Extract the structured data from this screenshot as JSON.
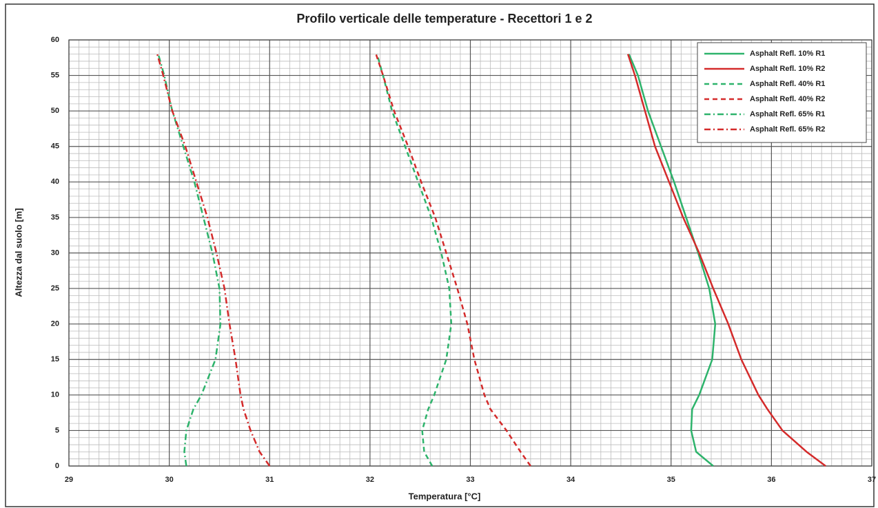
{
  "chart_data": {
    "type": "line",
    "title": "Profilo verticale delle temperature - Recettori 1 e 2",
    "x_label": "Temperatura [°C]",
    "y_label": "Altezza  dal suolo [m]",
    "y": [
      0,
      2,
      5,
      8,
      10,
      15,
      20,
      25,
      30,
      35,
      40,
      45,
      50,
      55,
      58
    ],
    "series": [
      {
        "name": "Asphalt Refl. 10% R1",
        "color": "#2db36b",
        "style": "solid",
        "values": [
          35.42,
          35.25,
          35.2,
          35.21,
          35.28,
          35.41,
          35.44,
          35.38,
          35.27,
          35.15,
          35.03,
          34.9,
          34.77,
          34.67,
          34.58
        ]
      },
      {
        "name": "Asphalt Refl. 10% R2",
        "color": "#d42a2a",
        "style": "solid",
        "values": [
          36.54,
          36.35,
          36.11,
          35.96,
          35.87,
          35.7,
          35.57,
          35.42,
          35.28,
          35.12,
          34.98,
          34.84,
          34.74,
          34.64,
          34.57
        ]
      },
      {
        "name": "Asphalt Refl. 40% R1",
        "color": "#2db36b",
        "style": "dashed",
        "values": [
          32.62,
          32.54,
          32.52,
          32.58,
          32.64,
          32.76,
          32.81,
          32.79,
          32.71,
          32.61,
          32.48,
          32.35,
          32.22,
          32.13,
          32.07
        ]
      },
      {
        "name": "Asphalt Refl. 40% R2",
        "color": "#d42a2a",
        "style": "dashed",
        "values": [
          33.6,
          33.5,
          33.36,
          33.2,
          33.14,
          33.04,
          32.97,
          32.87,
          32.76,
          32.65,
          32.51,
          32.38,
          32.24,
          32.13,
          32.06
        ]
      },
      {
        "name": "Asphalt Refl. 65% R1",
        "color": "#2db36b",
        "style": "dashdot",
        "values": [
          30.17,
          30.15,
          30.17,
          30.24,
          30.32,
          30.46,
          30.51,
          30.5,
          30.43,
          30.34,
          30.25,
          30.14,
          30.03,
          29.95,
          29.89
        ]
      },
      {
        "name": "Asphalt Refl. 65% R2",
        "color": "#d42a2a",
        "style": "dashdot",
        "values": [
          31.0,
          30.9,
          30.81,
          30.74,
          30.71,
          30.66,
          30.6,
          30.55,
          30.47,
          30.38,
          30.27,
          30.16,
          30.03,
          29.94,
          29.88
        ]
      }
    ],
    "xlim": [
      29,
      37
    ],
    "xticks": [
      29,
      30,
      31,
      32,
      33,
      34,
      35,
      36,
      37
    ],
    "ylim": [
      0,
      60
    ],
    "yticks": [
      0,
      5,
      10,
      15,
      20,
      25,
      30,
      35,
      40,
      45,
      50,
      55,
      60
    ],
    "grid": true,
    "minor_grid": true,
    "legend": "top-right"
  }
}
